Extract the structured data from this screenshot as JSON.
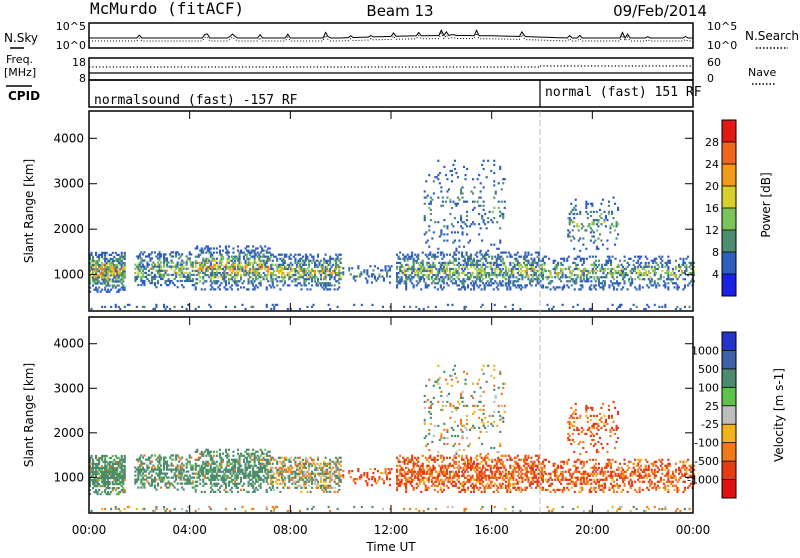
{
  "header": {
    "station": "McMurdo (fitACF)",
    "beam": "Beam 13",
    "date": "09/Feb/2014"
  },
  "noise_panel": {
    "left_label": "N.Sky",
    "right_label": "N.Search",
    "left_ticks": [
      "10^5",
      "10^0"
    ],
    "right_ticks": [
      "10^5",
      "10^0"
    ]
  },
  "freq_panel": {
    "left_label_1": "Freq.",
    "left_label_2": "[MHz]",
    "right_label": "Nave",
    "left_ticks": [
      "18",
      "8"
    ],
    "right_ticks": [
      "60",
      "0"
    ]
  },
  "cpid_panel": {
    "label": "CPID",
    "segments": [
      {
        "text": "normalsound (fast) -157 RF",
        "start_hour": 0
      },
      {
        "text": "normal (fast) 151 RF",
        "start_hour": 18.0
      }
    ]
  },
  "chart_data": [
    {
      "type": "heatmap",
      "name": "power",
      "ylabel": "Slant Range [km]",
      "ylim": [
        200,
        4600
      ],
      "yticks": [
        1000,
        2000,
        3000,
        4000
      ],
      "xlim": [
        0,
        24
      ],
      "colorbar": {
        "label": "Power [dB]",
        "range": [
          0,
          32
        ],
        "ticks": [
          "4",
          "8",
          "12",
          "16",
          "20",
          "24",
          "28"
        ],
        "colors": [
          "#1a20e6",
          "#2f5fbd",
          "#4d8c6e",
          "#7cc35a",
          "#d8d02a",
          "#f29a1a",
          "#f0661b",
          "#e01a10"
        ]
      }
    },
    {
      "type": "heatmap",
      "name": "velocity",
      "ylabel": "Slant Range [km]",
      "ylim": [
        200,
        4600
      ],
      "yticks": [
        1000,
        2000,
        3000,
        4000
      ],
      "xlim": [
        0,
        24
      ],
      "colorbar": {
        "label": "Velocity [m s-1]",
        "ticks": [
          "1000",
          "500",
          "100",
          "25",
          "-25",
          "-100",
          "-500",
          "-1000"
        ],
        "colors": [
          "#2434c8",
          "#3d62a8",
          "#4c8b6c",
          "#5fc24a",
          "#bdbdbd",
          "#f0b31d",
          "#f07a1a",
          "#e53a12",
          "#e01010"
        ]
      }
    }
  ],
  "x_axis": {
    "ticks": [
      "00:00",
      "04:00",
      "08:00",
      "12:00",
      "16:00",
      "20:00",
      "00:00"
    ],
    "label": "Time UT"
  }
}
